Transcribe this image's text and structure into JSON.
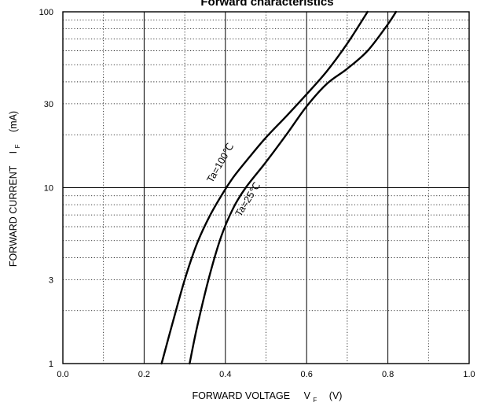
{
  "chart_data": {
    "type": "line",
    "title": "Forward characteristics",
    "xlabel": {
      "main": "FORWARD VOLTAGE",
      "symbol": "V",
      "sub": "F",
      "unit": "(V)"
    },
    "ylabel": {
      "main": "FORWARD CURRENT",
      "symbol": "I",
      "sub": "F",
      "unit": "(mA)"
    },
    "xlim": [
      0.0,
      1.0
    ],
    "ylim": [
      1,
      100
    ],
    "yscale": "log",
    "grid": true,
    "xticks": [
      0.0,
      0.2,
      0.4,
      0.6,
      0.8,
      1.0
    ],
    "xtick_labels": [
      "0.0",
      "0.2",
      "0.4",
      "0.6",
      "0.8",
      "1.0"
    ],
    "yticks": [
      1,
      3,
      10,
      30,
      100
    ],
    "ytick_labels": [
      "1",
      "3",
      "10",
      "30",
      "100"
    ],
    "series": [
      {
        "name": "Ta=100℃",
        "x": [
          0.243,
          0.27,
          0.3,
          0.33,
          0.36,
          0.39,
          0.42,
          0.46,
          0.5,
          0.55,
          0.6,
          0.65,
          0.7,
          0.75
        ],
        "y": [
          1.0,
          1.7,
          3.0,
          4.8,
          6.8,
          9.0,
          11.5,
          15.0,
          19.3,
          25.5,
          34.0,
          46.0,
          66.0,
          100.0
        ]
      },
      {
        "name": "Ta=25℃",
        "x": [
          0.312,
          0.33,
          0.36,
          0.39,
          0.42,
          0.45,
          0.5,
          0.55,
          0.6,
          0.65,
          0.7,
          0.75,
          0.8,
          0.82
        ],
        "y": [
          1.0,
          1.6,
          3.1,
          5.3,
          7.7,
          10.0,
          14.0,
          20.0,
          29.0,
          39.0,
          47.5,
          60.0,
          85.0,
          100.0
        ]
      }
    ]
  }
}
